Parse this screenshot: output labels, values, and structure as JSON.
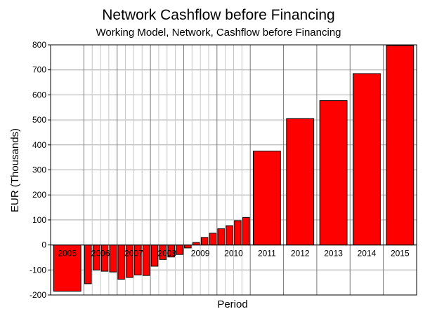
{
  "chart_data": {
    "type": "bar",
    "title": "Network Cashflow before Financing",
    "subtitle": "Working Model, Network, Cashflow before Financing",
    "xlabel": "Period",
    "ylabel": "EUR (Thousands)",
    "ylim": [
      -200,
      800
    ],
    "yticks": [
      -200,
      -100,
      0,
      100,
      200,
      300,
      400,
      500,
      600,
      700,
      800
    ],
    "grid": true,
    "bar_color": "#ff0000",
    "years": [
      "2005",
      "2006",
      "2007",
      "2008",
      "2009",
      "2010",
      "2011",
      "2012",
      "2013",
      "2014",
      "2015"
    ],
    "series": [
      {
        "period": "2005",
        "values": [
          -185
        ]
      },
      {
        "period": "2006",
        "values": [
          -155,
          -100,
          -105,
          -108
        ]
      },
      {
        "period": "2007",
        "values": [
          -137,
          -130,
          -120,
          -122
        ]
      },
      {
        "period": "2008",
        "values": [
          -85,
          -58,
          -48,
          -38
        ]
      },
      {
        "period": "2009",
        "values": [
          -12,
          10,
          30,
          47
        ]
      },
      {
        "period": "2010",
        "values": [
          65,
          77,
          97,
          110
        ]
      },
      {
        "period": "2011",
        "values": [
          375
        ]
      },
      {
        "period": "2012",
        "values": [
          505
        ]
      },
      {
        "period": "2013",
        "values": [
          577
        ]
      },
      {
        "period": "2014",
        "values": [
          685
        ]
      },
      {
        "period": "2015",
        "values": [
          797
        ]
      }
    ]
  }
}
